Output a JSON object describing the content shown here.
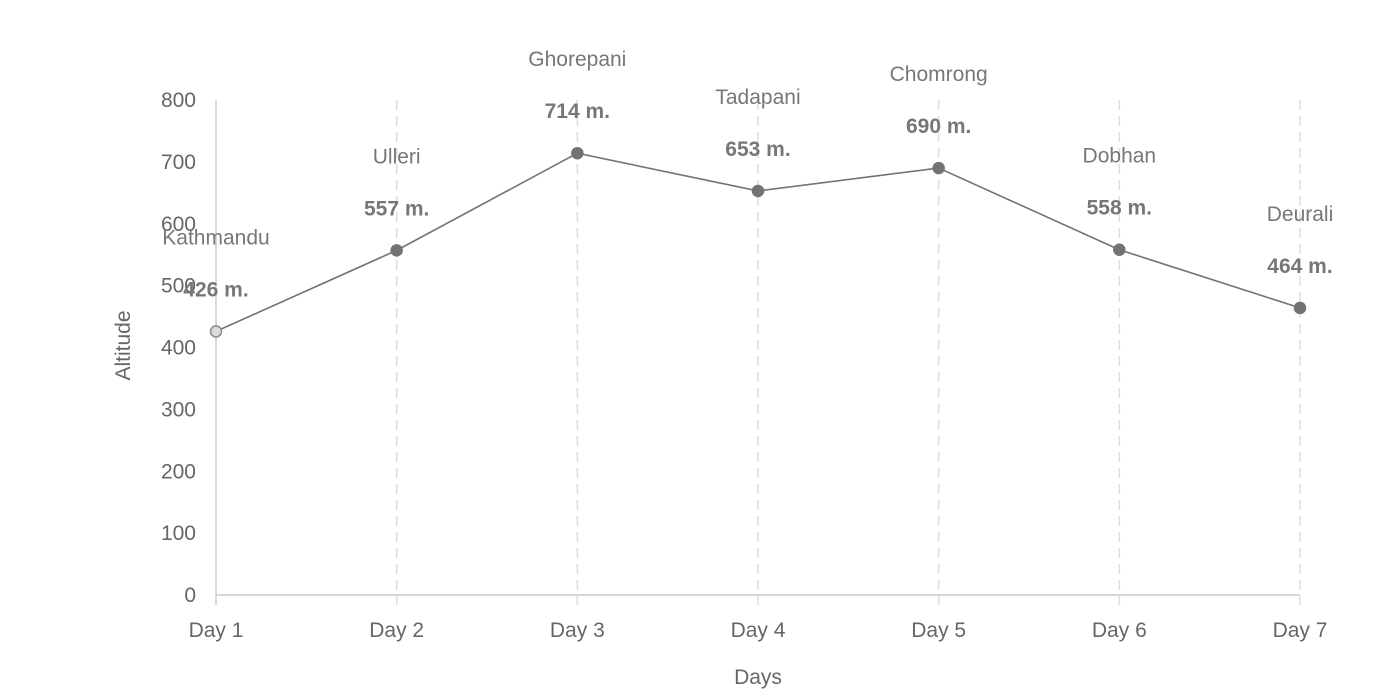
{
  "chart_data": {
    "type": "line",
    "title": "",
    "xlabel": "Days",
    "ylabel": "Altitude",
    "ylim": [
      0,
      800
    ],
    "yticks": [
      0,
      100,
      200,
      300,
      400,
      500,
      600,
      700,
      800
    ],
    "categories": [
      "Day 1",
      "Day 2",
      "Day 3",
      "Day 4",
      "Day 5",
      "Day 6",
      "Day 7"
    ],
    "series": [
      {
        "values": [
          426,
          557,
          714,
          653,
          690,
          558,
          464
        ],
        "color": "#737373"
      }
    ],
    "places": [
      "Kathmandu",
      "Ulleri",
      "Ghorepani",
      "Tadapani",
      "Chomrong",
      "Dobhan",
      "Deurali"
    ],
    "value_labels": [
      "426 m.",
      "557 m.",
      "714 m.",
      "653 m.",
      "690 m.",
      "558 m.",
      "464 m."
    ],
    "grid": {
      "vertical": "dashed",
      "horizontal": false
    },
    "legend": "none"
  }
}
